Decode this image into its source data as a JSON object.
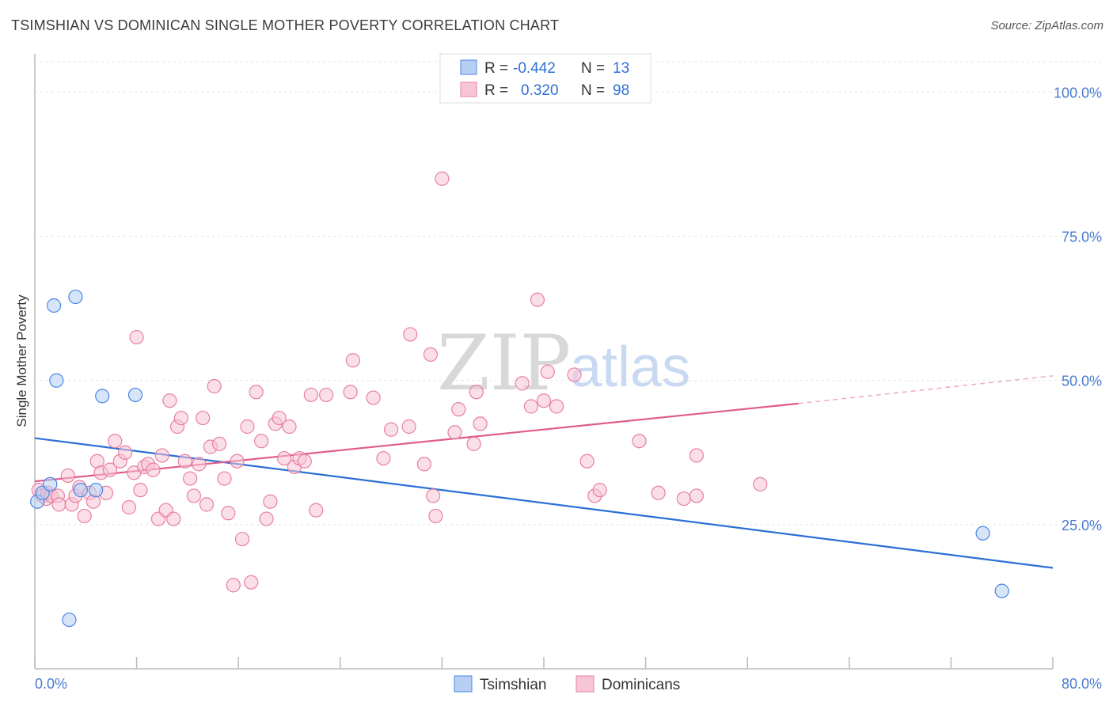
{
  "title": "TSIMSHIAN VS DOMINICAN SINGLE MOTHER POVERTY CORRELATION CHART",
  "source": "Source: ZipAtlas.com",
  "watermark": {
    "zip": "ZIP",
    "atlas": "atlas"
  },
  "chart_data": {
    "type": "scatter",
    "xlabel": "",
    "ylabel": "Single Mother Poverty",
    "xlim": [
      0,
      80
    ],
    "ylim": [
      0,
      105
    ],
    "x_tick_labels": {
      "left": "0.0%",
      "right": "80.0%"
    },
    "x_minor_ticks": [
      0,
      8,
      16,
      24,
      32,
      40,
      48,
      56,
      64,
      72,
      80
    ],
    "y_ticks": [
      {
        "value": 100,
        "label": "100.0%"
      },
      {
        "value": 75,
        "label": "75.0%"
      },
      {
        "value": 50,
        "label": "50.0%"
      },
      {
        "value": 25,
        "label": "25.0%"
      }
    ],
    "legend": {
      "rows": [
        {
          "series": "Tsimshian",
          "r_label": "R =",
          "r_value": "-0.442",
          "n_label": "N =",
          "n_value": "13"
        },
        {
          "series": "Dominicans",
          "r_label": "R =",
          "r_value": "0.320",
          "n_label": "N =",
          "n_value": "98"
        }
      ]
    },
    "series": [
      {
        "name": "Tsimshian",
        "color": "#4a86e8",
        "fill": "#b7cff3",
        "trend": {
          "x0": 0,
          "y0": 40.0,
          "x1": 80,
          "y1": 17.5,
          "color": "#2b6fd6"
        },
        "points": [
          [
            0.2,
            29.0
          ],
          [
            0.6,
            30.5
          ],
          [
            1.2,
            32.0
          ],
          [
            1.5,
            63.0
          ],
          [
            1.7,
            50.0
          ],
          [
            2.7,
            8.5
          ],
          [
            3.2,
            64.5
          ],
          [
            3.6,
            31.0
          ],
          [
            4.8,
            31.0
          ],
          [
            5.3,
            47.3
          ],
          [
            7.9,
            47.5
          ],
          [
            74.5,
            23.5
          ],
          [
            76.0,
            13.5
          ]
        ]
      },
      {
        "name": "Dominicans",
        "color": "#e87fa3",
        "fill": "#f8c5d6",
        "trend": {
          "x0": 0,
          "y0": 32.5,
          "x1": 60,
          "y1": 46.0,
          "color": "#e05c8a"
        },
        "trend_dashed": {
          "x0": 60,
          "y0": 46.0,
          "x1": 80,
          "y1": 50.8,
          "color": "#f0a9c0"
        },
        "points": [
          [
            0.3,
            31.0
          ],
          [
            0.6,
            30.0
          ],
          [
            0.9,
            29.5
          ],
          [
            1.0,
            30.5
          ],
          [
            1.3,
            30.0
          ],
          [
            1.8,
            30.0
          ],
          [
            1.9,
            28.5
          ],
          [
            2.6,
            33.5
          ],
          [
            2.9,
            28.5
          ],
          [
            3.2,
            30.0
          ],
          [
            3.5,
            31.5
          ],
          [
            3.9,
            26.5
          ],
          [
            4.3,
            30.5
          ],
          [
            4.6,
            29.0
          ],
          [
            4.9,
            36.0
          ],
          [
            5.2,
            34.0
          ],
          [
            5.6,
            30.5
          ],
          [
            5.9,
            34.5
          ],
          [
            6.3,
            39.5
          ],
          [
            6.7,
            36.0
          ],
          [
            7.1,
            37.5
          ],
          [
            7.4,
            28.0
          ],
          [
            7.8,
            34.0
          ],
          [
            8.0,
            57.5
          ],
          [
            8.3,
            31.0
          ],
          [
            8.6,
            35.0
          ],
          [
            8.9,
            35.5
          ],
          [
            9.3,
            34.5
          ],
          [
            9.7,
            26.0
          ],
          [
            10.0,
            37.0
          ],
          [
            10.3,
            27.5
          ],
          [
            10.6,
            46.5
          ],
          [
            10.9,
            26.0
          ],
          [
            11.2,
            42.0
          ],
          [
            11.5,
            43.5
          ],
          [
            11.8,
            36.0
          ],
          [
            12.2,
            33.0
          ],
          [
            12.5,
            30.0
          ],
          [
            12.9,
            35.5
          ],
          [
            13.2,
            43.5
          ],
          [
            13.5,
            28.5
          ],
          [
            13.8,
            38.5
          ],
          [
            14.1,
            49.0
          ],
          [
            14.5,
            39.0
          ],
          [
            14.9,
            33.0
          ],
          [
            15.2,
            27.0
          ],
          [
            15.6,
            14.5
          ],
          [
            15.9,
            36.0
          ],
          [
            16.3,
            22.5
          ],
          [
            16.7,
            42.0
          ],
          [
            17.0,
            15.0
          ],
          [
            17.4,
            48.0
          ],
          [
            17.8,
            39.5
          ],
          [
            18.2,
            26.0
          ],
          [
            18.5,
            29.0
          ],
          [
            18.9,
            42.5
          ],
          [
            19.2,
            43.5
          ],
          [
            19.6,
            36.5
          ],
          [
            20.0,
            42.0
          ],
          [
            20.4,
            35.0
          ],
          [
            20.8,
            36.5
          ],
          [
            21.2,
            36.0
          ],
          [
            21.7,
            47.5
          ],
          [
            22.1,
            27.5
          ],
          [
            22.9,
            47.5
          ],
          [
            24.8,
            48.0
          ],
          [
            25.0,
            53.5
          ],
          [
            26.6,
            47.0
          ],
          [
            27.4,
            36.5
          ],
          [
            28.0,
            41.5
          ],
          [
            29.4,
            42.0
          ],
          [
            29.5,
            58.0
          ],
          [
            30.6,
            35.5
          ],
          [
            31.1,
            54.5
          ],
          [
            31.3,
            30.0
          ],
          [
            31.5,
            26.5
          ],
          [
            32.0,
            85.0
          ],
          [
            33.0,
            41.0
          ],
          [
            33.3,
            45.0
          ],
          [
            34.5,
            39.0
          ],
          [
            34.7,
            48.0
          ],
          [
            35.0,
            42.5
          ],
          [
            38.3,
            49.5
          ],
          [
            39.0,
            45.5
          ],
          [
            39.5,
            64.0
          ],
          [
            40.0,
            46.5
          ],
          [
            40.3,
            51.5
          ],
          [
            41.0,
            45.5
          ],
          [
            42.4,
            51.0
          ],
          [
            43.4,
            36.0
          ],
          [
            44.0,
            30.0
          ],
          [
            44.4,
            31.0
          ],
          [
            47.5,
            39.5
          ],
          [
            49.0,
            30.5
          ],
          [
            51.0,
            29.5
          ],
          [
            52.0,
            37.0
          ],
          [
            52.0,
            30.0
          ],
          [
            57.0,
            32.0
          ]
        ]
      }
    ]
  }
}
